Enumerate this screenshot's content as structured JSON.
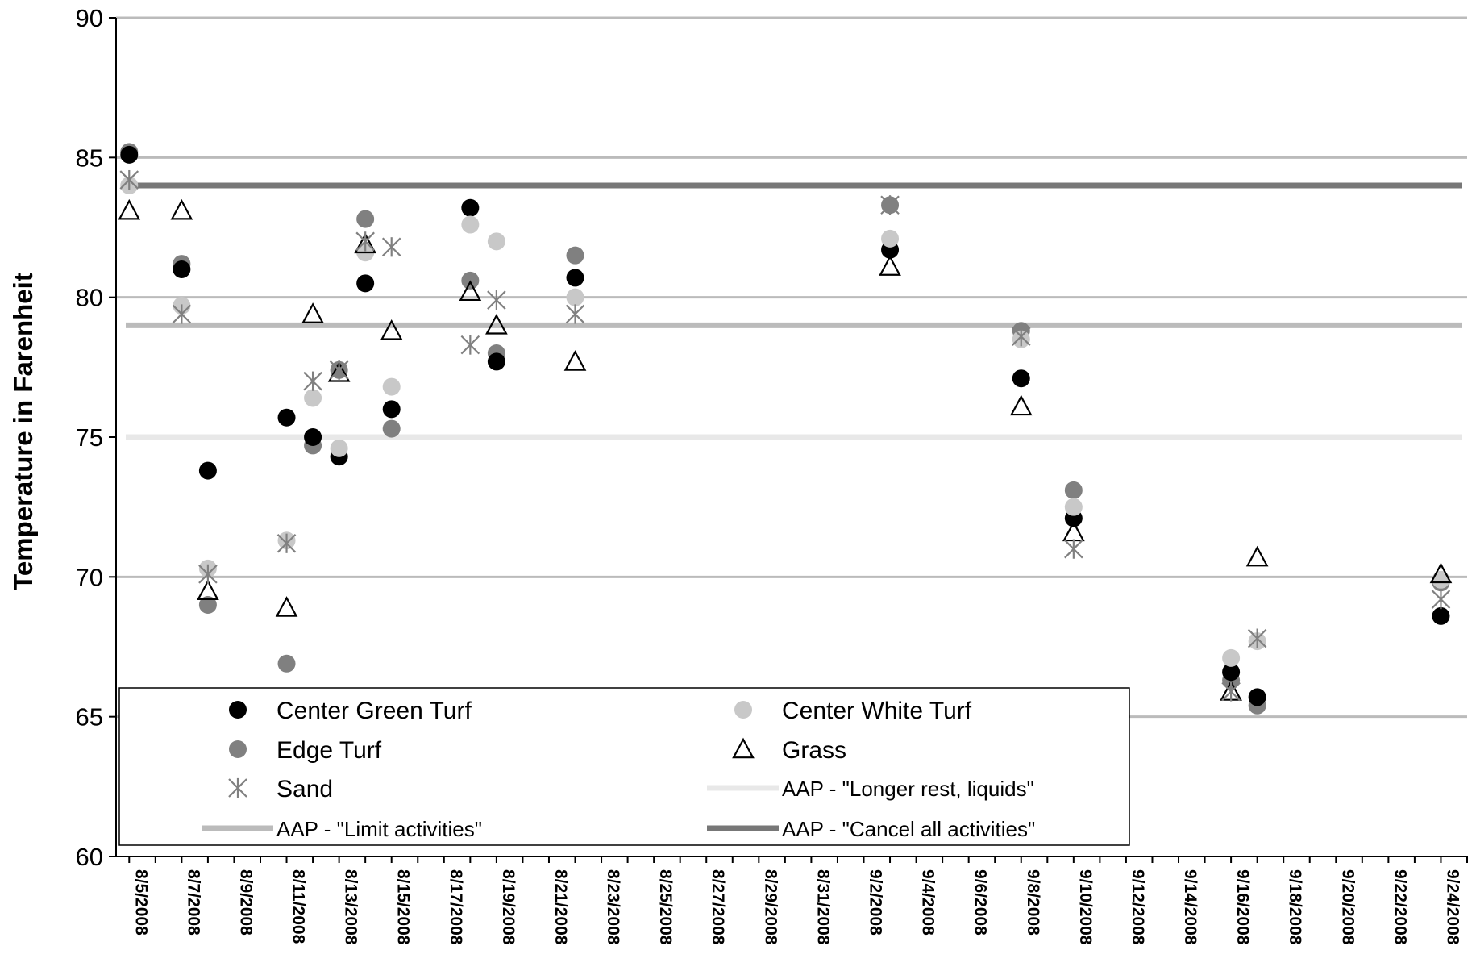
{
  "chart_data": {
    "type": "scatter",
    "ylabel": "Temperature in Farenheit",
    "xlabel": "",
    "ylim": [
      60,
      90
    ],
    "yticks": [
      60,
      65,
      70,
      75,
      80,
      85,
      90
    ],
    "x_tick_labels": [
      "8/5/2008",
      "8/7/2008",
      "8/9/2008",
      "8/11/2008",
      "8/13/2008",
      "8/15/2008",
      "8/17/2008",
      "8/19/2008",
      "8/21/2008",
      "8/23/2008",
      "8/25/2008",
      "8/27/2008",
      "8/29/2008",
      "8/31/2008",
      "9/2/2008",
      "9/4/2008",
      "9/6/2008",
      "9/8/2008",
      "9/10/2008",
      "9/12/2008",
      "9/14/2008",
      "9/16/2008",
      "9/18/2008",
      "9/20/2008",
      "9/22/2008",
      "9/24/2008"
    ],
    "xlim": [
      "8/5/2008",
      "9/25/2008"
    ],
    "grid": "horizontal reference lines at 65, 70, 80, 85",
    "legend_position": "bottom-left inside plot",
    "series": [
      {
        "name": "Center Green Turf",
        "marker": "circle",
        "color": "#000000",
        "points": [
          [
            "8/5/2008",
            85.1
          ],
          [
            "8/7/2008",
            81.0
          ],
          [
            "8/8/2008",
            73.8
          ],
          [
            "8/11/2008",
            75.7
          ],
          [
            "8/12/2008",
            75.0
          ],
          [
            "8/13/2008",
            74.3
          ],
          [
            "8/14/2008",
            80.5
          ],
          [
            "8/15/2008",
            76.0
          ],
          [
            "8/18/2008",
            83.2
          ],
          [
            "8/19/2008",
            77.7
          ],
          [
            "8/22/2008",
            80.7
          ],
          [
            "9/3/2008",
            81.7
          ],
          [
            "9/8/2008",
            77.1
          ],
          [
            "9/10/2008",
            72.1
          ],
          [
            "9/16/2008",
            66.6
          ],
          [
            "9/17/2008",
            65.7
          ],
          [
            "9/24/2008",
            68.6
          ]
        ]
      },
      {
        "name": "Center White Turf",
        "marker": "circle",
        "color": "#c8c8c8",
        "points": [
          [
            "8/5/2008",
            84.0
          ],
          [
            "8/7/2008",
            79.7
          ],
          [
            "8/8/2008",
            70.3
          ],
          [
            "8/11/2008",
            71.3
          ],
          [
            "8/12/2008",
            76.4
          ],
          [
            "8/13/2008",
            74.6
          ],
          [
            "8/14/2008",
            81.6
          ],
          [
            "8/15/2008",
            76.8
          ],
          [
            "8/18/2008",
            82.6
          ],
          [
            "8/19/2008",
            82.0
          ],
          [
            "8/22/2008",
            80.0
          ],
          [
            "9/3/2008",
            82.1
          ],
          [
            "9/8/2008",
            78.5
          ],
          [
            "9/10/2008",
            72.5
          ],
          [
            "9/16/2008",
            67.1
          ],
          [
            "9/17/2008",
            67.7
          ],
          [
            "9/24/2008",
            69.9
          ]
        ]
      },
      {
        "name": "Edge Turf",
        "marker": "circle",
        "color": "#808080",
        "points": [
          [
            "8/5/2008",
            85.2
          ],
          [
            "8/7/2008",
            81.2
          ],
          [
            "8/8/2008",
            69.0
          ],
          [
            "8/11/2008",
            66.9
          ],
          [
            "8/12/2008",
            74.7
          ],
          [
            "8/13/2008",
            77.4
          ],
          [
            "8/14/2008",
            82.8
          ],
          [
            "8/15/2008",
            75.3
          ],
          [
            "8/18/2008",
            80.6
          ],
          [
            "8/19/2008",
            78.0
          ],
          [
            "8/22/2008",
            81.5
          ],
          [
            "9/3/2008",
            83.3
          ],
          [
            "9/8/2008",
            78.8
          ],
          [
            "9/10/2008",
            73.1
          ],
          [
            "9/16/2008",
            66.3
          ],
          [
            "9/17/2008",
            65.4
          ],
          [
            "9/24/2008",
            69.8
          ]
        ]
      },
      {
        "name": "Grass",
        "marker": "triangle",
        "color": "#000000",
        "points": [
          [
            "8/5/2008",
            83.1
          ],
          [
            "8/7/2008",
            83.1
          ],
          [
            "8/8/2008",
            69.5
          ],
          [
            "8/11/2008",
            68.9
          ],
          [
            "8/12/2008",
            79.4
          ],
          [
            "8/13/2008",
            77.3
          ],
          [
            "8/14/2008",
            81.9
          ],
          [
            "8/15/2008",
            78.8
          ],
          [
            "8/18/2008",
            80.2
          ],
          [
            "8/19/2008",
            79.0
          ],
          [
            "8/22/2008",
            77.7
          ],
          [
            "9/3/2008",
            81.1
          ],
          [
            "9/8/2008",
            76.1
          ],
          [
            "9/10/2008",
            71.6
          ],
          [
            "9/16/2008",
            65.9
          ],
          [
            "9/17/2008",
            70.7
          ],
          [
            "9/24/2008",
            70.1
          ]
        ]
      },
      {
        "name": "Sand",
        "marker": "star",
        "color": "#808080",
        "points": [
          [
            "8/5/2008",
            84.2
          ],
          [
            "8/7/2008",
            79.4
          ],
          [
            "8/8/2008",
            70.1
          ],
          [
            "8/11/2008",
            71.2
          ],
          [
            "8/12/2008",
            77.0
          ],
          [
            "8/13/2008",
            77.4
          ],
          [
            "8/14/2008",
            82.0
          ],
          [
            "8/15/2008",
            81.8
          ],
          [
            "8/18/2008",
            78.3
          ],
          [
            "8/19/2008",
            79.9
          ],
          [
            "8/22/2008",
            79.4
          ],
          [
            "9/3/2008",
            83.3
          ],
          [
            "9/8/2008",
            78.6
          ],
          [
            "9/10/2008",
            71.0
          ],
          [
            "9/16/2008",
            65.9
          ],
          [
            "9/17/2008",
            67.8
          ],
          [
            "9/24/2008",
            69.2
          ]
        ]
      }
    ],
    "reference_lines": [
      {
        "name": "AAP - \"Longer rest, liquids\"",
        "y": 75,
        "color": "#e8e8e8",
        "legend": true
      },
      {
        "name": "AAP - \"Limit activities\"",
        "y": 79,
        "color": "#bbbbbb",
        "legend": true
      },
      {
        "name": "AAP - \"Cancel all activities\"",
        "y": 84,
        "color": "#777777",
        "legend": true
      }
    ],
    "gridline_color": "#bbbbbb"
  }
}
